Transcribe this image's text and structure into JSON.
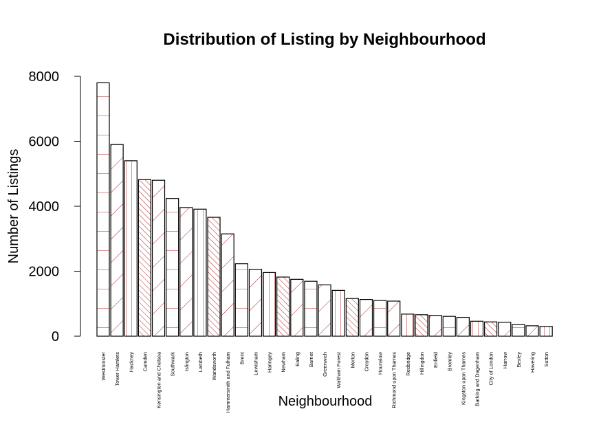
{
  "colors": {
    "bar_border": "#000000",
    "hatch": "#b22222",
    "background": "#ffffff"
  },
  "chart_data": {
    "type": "bar",
    "title": "Distribution of Listing by Neighbourhood",
    "xlabel": "Neighbourhood",
    "ylabel": "Number of Listings",
    "ylim": [
      0,
      8000
    ],
    "yticks": [
      0,
      2000,
      4000,
      6000,
      8000
    ],
    "grid": false,
    "categories": [
      "Westminster",
      "Tower Hamlets",
      "Hackney",
      "Camden",
      "Kensington and Chelsea",
      "Southwark",
      "Islington",
      "Lambeth",
      "Wandsworth",
      "Hammersmith and Fulham",
      "Brent",
      "Lewisham",
      "Haringey",
      "Newham",
      "Ealing",
      "Barnet",
      "Greenwich",
      "Waltham Forest",
      "Merton",
      "Croydon",
      "Hounslow",
      "Richmond upon Thames",
      "Redbridge",
      "Hillingdon",
      "Enfield",
      "Bromley",
      "Kingston upon Thames",
      "Barking and Dagenham",
      "City of London",
      "Harrow",
      "Bexley",
      "Havering",
      "Sutton"
    ],
    "values": [
      7800,
      5900,
      5400,
      4820,
      4800,
      4240,
      3960,
      3910,
      3660,
      3150,
      2230,
      2060,
      1960,
      1820,
      1750,
      1690,
      1580,
      1410,
      1160,
      1130,
      1100,
      1080,
      680,
      660,
      640,
      610,
      580,
      460,
      440,
      430,
      360,
      320,
      300
    ]
  }
}
